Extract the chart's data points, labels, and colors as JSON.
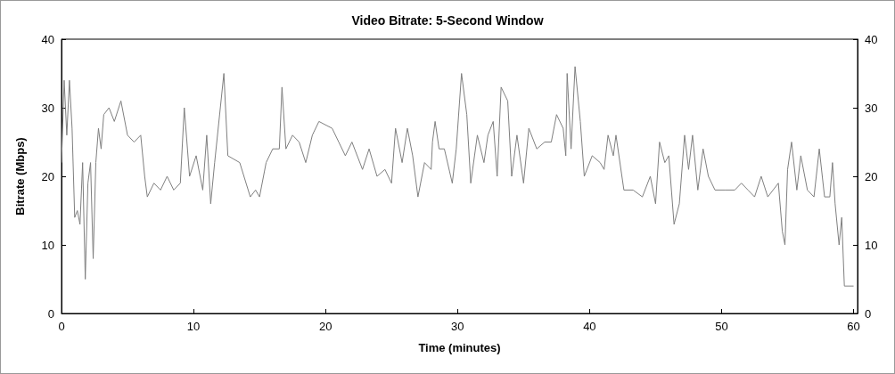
{
  "chart_data": {
    "type": "line",
    "title": "Video Bitrate: 5-Second Window",
    "xlabel": "Time (minutes)",
    "ylabel": "Bitrate (Mbps)",
    "xlim": [
      0,
      60.3
    ],
    "xticks": [
      0,
      10,
      20,
      30,
      40,
      50,
      60
    ],
    "ylim": [
      0,
      40
    ],
    "yticks": [
      0,
      10,
      20,
      30,
      40
    ],
    "y2lim": [
      0,
      40
    ],
    "y2ticks": [
      0,
      10,
      20,
      30,
      40
    ],
    "grid": false,
    "marker": "none",
    "line_style": "solid",
    "series": [
      {
        "color": "#7f7f7f",
        "x": [
          0,
          0.2,
          0.4,
          0.6,
          0.8,
          1.0,
          1.2,
          1.4,
          1.6,
          1.8,
          2.0,
          2.2,
          2.4,
          2.6,
          2.8,
          3.0,
          3.2,
          3.6,
          4.0,
          4.5,
          5.0,
          5.5,
          6.0,
          6.3,
          6.5,
          7.0,
          7.5,
          8.0,
          8.5,
          9.0,
          9.3,
          9.7,
          10.2,
          10.7,
          11.0,
          11.3,
          11.6,
          12.3,
          12.6,
          13.5,
          14.3,
          14.7,
          15.0,
          15.5,
          16.0,
          16.5,
          16.7,
          17.0,
          17.5,
          18.0,
          18.5,
          19.0,
          19.5,
          20.5,
          21.0,
          21.5,
          22.0,
          22.8,
          23.3,
          23.9,
          24.5,
          25.0,
          25.3,
          25.8,
          26.2,
          26.6,
          27.0,
          27.3,
          27.5,
          28.0,
          28.1,
          28.3,
          28.6,
          29.0,
          29.6,
          29.9,
          30.3,
          30.7,
          31.0,
          31.5,
          32.0,
          32.3,
          32.7,
          33.0,
          33.3,
          33.8,
          34.1,
          34.5,
          35.0,
          35.4,
          36.0,
          36.6,
          37.1,
          37.5,
          38.0,
          38.2,
          38.3,
          38.6,
          38.9,
          39.3,
          39.6,
          40.2,
          40.8,
          41.1,
          41.4,
          41.8,
          42.0,
          42.6,
          43.3,
          44.0,
          44.6,
          45.0,
          45.3,
          45.7,
          46.0,
          46.4,
          46.8,
          47.2,
          47.5,
          47.8,
          48.2,
          48.6,
          49.0,
          49.5,
          50.3,
          51.0,
          51.5,
          52.0,
          52.5,
          53.0,
          53.5,
          54.3,
          54.6,
          54.8,
          55.0,
          55.3,
          55.7,
          56.0,
          56.5,
          57.0,
          57.4,
          57.8,
          58.2,
          58.4,
          58.6,
          58.9,
          59.1,
          59.3,
          60.0
        ],
        "values": [
          22,
          34,
          26,
          34,
          27,
          14,
          15,
          13,
          22,
          5,
          19,
          22,
          8,
          22,
          27,
          24,
          29,
          30,
          28,
          31,
          26,
          25,
          26,
          20,
          17,
          19,
          18,
          20,
          18,
          19,
          30,
          20,
          23,
          18,
          26,
          16,
          22,
          35,
          23,
          22,
          17,
          18,
          17,
          22,
          24,
          24,
          33,
          24,
          26,
          25,
          22,
          26,
          28,
          27,
          25,
          23,
          25,
          21,
          24,
          20,
          21,
          19,
          27,
          22,
          27,
          23,
          17,
          20,
          22,
          21,
          25,
          28,
          24,
          24,
          19,
          24,
          35,
          29,
          19,
          26,
          22,
          26,
          28,
          20,
          33,
          31,
          20,
          26,
          19,
          27,
          24,
          25,
          25,
          29,
          27,
          23,
          35,
          24,
          36,
          28,
          20,
          23,
          22,
          21,
          26,
          23,
          26,
          18,
          18,
          17,
          20,
          16,
          25,
          22,
          23,
          13,
          16,
          26,
          21,
          26,
          18,
          24,
          20,
          18,
          18,
          18,
          19,
          18,
          17,
          20,
          17,
          19,
          12,
          10,
          21,
          25,
          18,
          23,
          18,
          17,
          24,
          17,
          17,
          22,
          16,
          10,
          14,
          4,
          4
        ]
      }
    ]
  }
}
